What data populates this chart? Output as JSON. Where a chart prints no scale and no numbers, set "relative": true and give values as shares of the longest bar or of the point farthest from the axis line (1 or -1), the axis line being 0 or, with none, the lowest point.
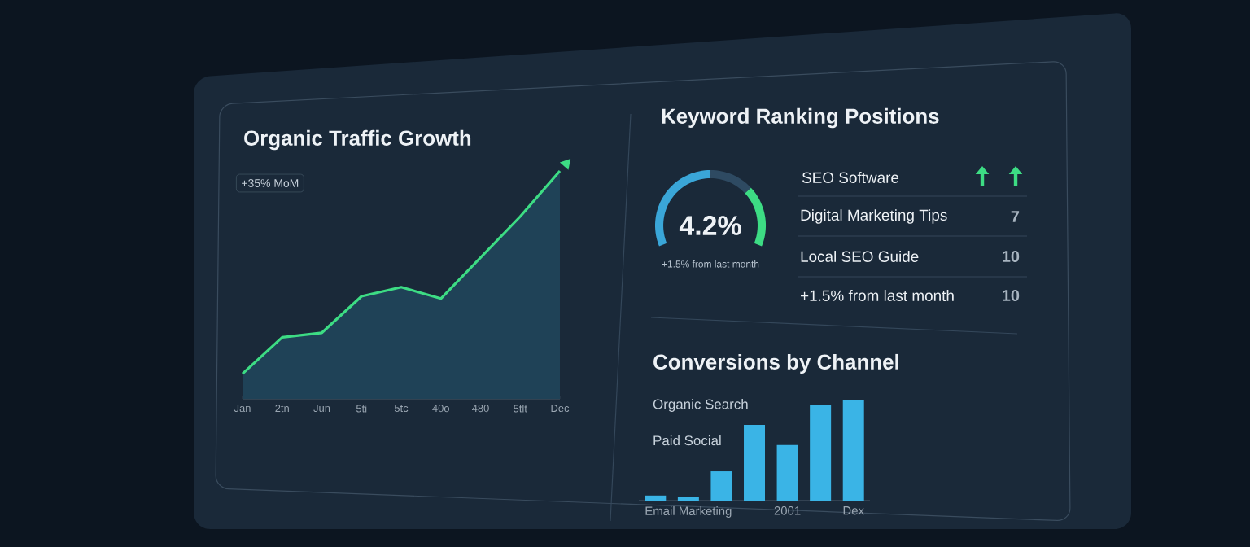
{
  "chart_data": [
    {
      "type": "area",
      "title": "Organic Traffic Growth",
      "relative": true,
      "annotations": [
        "+35% MoM"
      ],
      "categories": [
        "Jan",
        "2tn",
        "Jun",
        "5ti",
        "5tc",
        "40o",
        "480",
        "5tlt",
        "Dec"
      ],
      "series": [
        {
          "color": "#3ddc84",
          "values": [
            0.11,
            0.27,
            0.29,
            0.45,
            0.49,
            0.44,
            0.62,
            0.8,
            1
          ]
        }
      ]
    },
    {
      "type": "donut",
      "title": "Keyword Ranking Positions",
      "categories": [
        null,
        null,
        null
      ],
      "values": [
        50,
        21,
        29
      ],
      "colors": [
        "#3aa6d8",
        "#2e4a62",
        "#3ddc84"
      ],
      "annotations": [
        "4.2%",
        "+1.5% from last month"
      ]
    },
    {
      "type": "other",
      "annotations": [
        "SEO Software",
        "Digital Marketing Tips",
        "7",
        "Local SEO Guide",
        "10",
        "+1.5% from last month",
        "10"
      ]
    },
    {
      "type": "bar",
      "title": "Conversions by Channel",
      "relative": true,
      "categories": [
        null,
        "Email Marketing",
        null,
        null,
        "2001",
        null,
        "Dex"
      ],
      "values": [
        0.05,
        0.04,
        0.29,
        0.75,
        0.55,
        0.95,
        1
      ],
      "color": "#3ab4e6",
      "annotations": [
        "Organic Search",
        "Paid Social"
      ]
    }
  ]
}
